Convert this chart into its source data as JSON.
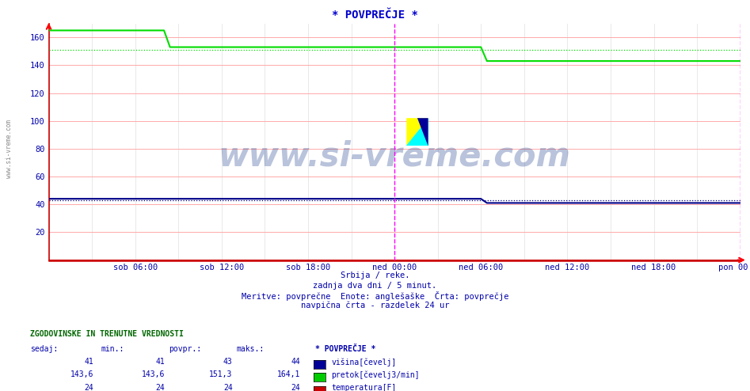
{
  "title": "* POVPREČJE *",
  "background_color": "#ffffff",
  "plot_bg_color": "#ffffff",
  "ylim": [
    0,
    170
  ],
  "yticks": [
    20,
    40,
    60,
    80,
    100,
    120,
    140,
    160
  ],
  "xlabels": [
    "sob 06:00",
    "sob 12:00",
    "sob 18:00",
    "ned 00:00",
    "ned 06:00",
    "ned 12:00",
    "ned 18:00",
    "pon 00:00"
  ],
  "n_points": 577,
  "green_line_color": "#00dd00",
  "blue_line_color": "#000088",
  "red_line_color": "#cc0000",
  "vline_color": "#ff00ff",
  "grid_pink": "#ffcccc",
  "grid_light": "#dddddd",
  "subtitle_lines": [
    "Srbija / reke.",
    "zadnja dva dni / 5 minut.",
    "Meritve: povprečne  Enote: anglešaške  Črta: povprečje",
    "navpična črta - razdelek 24 ur"
  ],
  "table_header": "ZGODOVINSKE IN TRENUTNE VREDNOSTI",
  "col_headers": [
    "sedaj:",
    "min.:",
    "povpr.:",
    "maks.:"
  ],
  "legend_title": "* POVPREČJE *",
  "legend_items": [
    {
      "label": "višina[čevelj]",
      "color": "#000099"
    },
    {
      "label": "pretok[čevelj3/min]",
      "color": "#00cc00"
    },
    {
      "label": "temperatura[F]",
      "color": "#cc0000"
    }
  ],
  "watermark": "www.si-vreme.com",
  "watermark_color": "#1a3a8a",
  "left_label": "www.si-vreme.com",
  "title_color": "#0000cc",
  "axis_label_color": "#0000aa",
  "tick_label_color": "#0000aa",
  "table_text_color": "#0000aa",
  "table_header_color": "#006600"
}
